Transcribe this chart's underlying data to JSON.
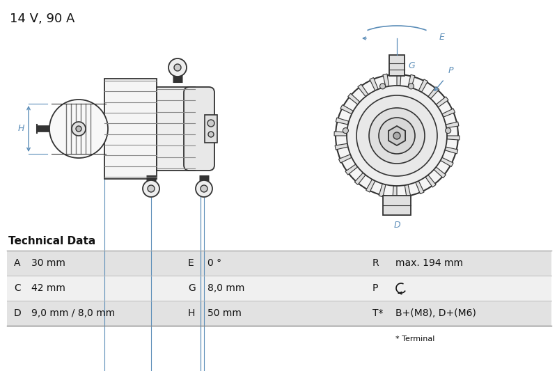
{
  "title": "14 V, 90 A",
  "title_fontsize": 13,
  "bg_color": "#ffffff",
  "blue": "#4a7aac",
  "dark": "#111111",
  "gray_line": "#aaaaaa",
  "table_header": "Technical Data",
  "table_bg_odd": "#e2e2e2",
  "table_bg_even": "#f0f0f0",
  "rows": [
    [
      "A",
      "30 mm",
      "E",
      "0 °",
      "R",
      "max. 194 mm"
    ],
    [
      "C",
      "42 mm",
      "G",
      "8,0 mm",
      "P",
      "↺"
    ],
    [
      "D",
      "9,0 mm / 8,0 mm",
      "H",
      "50 mm",
      "T*",
      "B+(M8), D+(M6)"
    ]
  ],
  "footnote": "* Terminal",
  "drawing_color": "#333333",
  "dim_color": "#5b8db8"
}
